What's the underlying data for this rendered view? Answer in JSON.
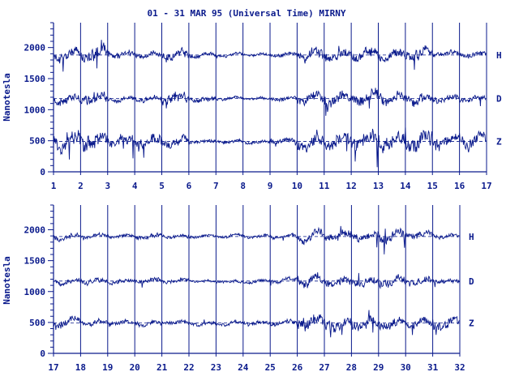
{
  "colors": {
    "ink": "#0a1a8c",
    "background": "#ffffff"
  },
  "chart_data": [
    {
      "type": "line",
      "title": "01 - 31 MAR 95 (Universal Time) MIRNY",
      "ylabel": "Nanotesla",
      "xlabel": "",
      "ylim": [
        0,
        2400
      ],
      "y_ticks": [
        0,
        500,
        1000,
        1500,
        2000
      ],
      "x_range": [
        1,
        17
      ],
      "x_ticks": [
        1,
        2,
        3,
        4,
        5,
        6,
        7,
        8,
        9,
        10,
        11,
        12,
        13,
        14,
        15,
        16,
        17
      ],
      "grid": "vertical lines at each day",
      "series": [
        {
          "name": "H",
          "baseline": 1880,
          "amplitude_by_day": [
            0.9,
            1.3,
            0.7,
            0.5,
            1.0,
            0.4,
            0.3,
            0.25,
            0.4,
            1.1,
            1.0,
            1.2,
            0.9,
            1.1,
            0.6,
            0.5
          ]
        },
        {
          "name": "D",
          "baseline": 1180,
          "amplitude_by_day": [
            0.8,
            1.1,
            0.6,
            0.5,
            1.1,
            0.5,
            0.3,
            0.25,
            0.4,
            1.0,
            1.1,
            1.3,
            1.0,
            1.0,
            0.6,
            0.5
          ]
        },
        {
          "name": "Z",
          "baseline": 490,
          "amplitude_by_day": [
            1.5,
            1.6,
            1.0,
            1.1,
            0.9,
            0.5,
            0.3,
            0.3,
            0.7,
            1.6,
            1.4,
            1.8,
            1.5,
            1.5,
            1.0,
            1.1
          ]
        }
      ]
    },
    {
      "type": "line",
      "title": "",
      "ylabel": "Nanotesla",
      "xlabel": "",
      "ylim": [
        0,
        2400
      ],
      "y_ticks": [
        0,
        500,
        1000,
        1500,
        2000
      ],
      "x_range": [
        17,
        32
      ],
      "x_ticks": [
        17,
        18,
        19,
        20,
        21,
        22,
        23,
        24,
        25,
        26,
        27,
        28,
        29,
        30,
        31,
        32
      ],
      "grid": "vertical lines at each day",
      "series": [
        {
          "name": "H",
          "baseline": 1890,
          "amplitude_by_day": [
            0.5,
            0.4,
            0.35,
            0.5,
            0.35,
            0.3,
            0.3,
            0.3,
            0.35,
            0.9,
            0.9,
            0.8,
            1.0,
            0.6,
            0.4
          ]
        },
        {
          "name": "D",
          "baseline": 1170,
          "amplitude_by_day": [
            0.5,
            0.5,
            0.4,
            0.45,
            0.35,
            0.3,
            0.3,
            0.3,
            0.4,
            0.9,
            0.9,
            0.9,
            1.0,
            0.7,
            0.5
          ]
        },
        {
          "name": "Z",
          "baseline": 490,
          "amplitude_by_day": [
            0.9,
            0.5,
            0.4,
            0.45,
            0.35,
            0.35,
            0.35,
            0.4,
            0.5,
            1.2,
            1.2,
            1.0,
            1.1,
            0.8,
            0.9
          ]
        }
      ]
    }
  ]
}
